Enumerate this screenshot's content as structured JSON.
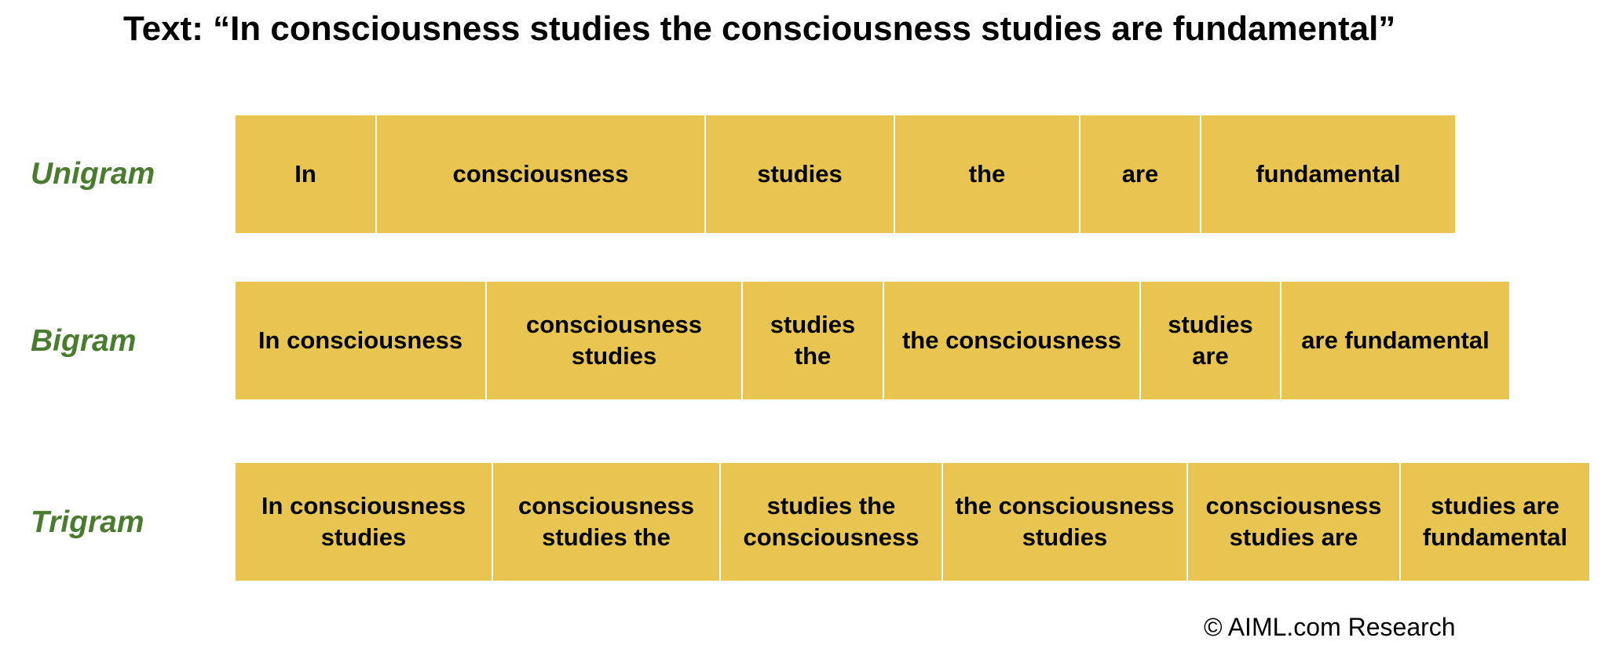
{
  "title": "Text: “In consciousness studies the consciousness studies are fundamental”",
  "rows": [
    {
      "label": "Unigram",
      "cells": [
        "In",
        "consciousness",
        "studies",
        "the",
        "are",
        "fundamental"
      ]
    },
    {
      "label": "Bigram",
      "cells": [
        "In consciousness",
        "consciousness studies",
        "studies the",
        "the consciousness",
        "studies are",
        "are fundamental"
      ]
    },
    {
      "label": "Trigram",
      "cells": [
        "In consciousness studies",
        "consciousness studies the",
        "studies the consciousness",
        "the consciousness studies",
        "consciousness studies are",
        "studies are fundamental"
      ]
    }
  ],
  "footer": "© AIML.com Research",
  "colors": {
    "cell_fill": "#e8c550",
    "label_text": "#4a7c2f",
    "cell_border": "#ffffff"
  }
}
